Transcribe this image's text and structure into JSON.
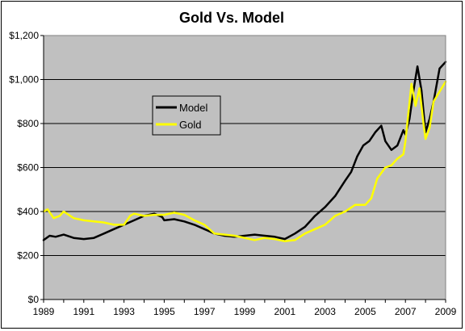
{
  "chart_data": {
    "type": "line",
    "title": "Gold Vs. Model",
    "xlabel": "",
    "ylabel": "",
    "xlim": [
      1989,
      2009
    ],
    "ylim": [
      0,
      1200
    ],
    "x_ticks": [
      1989,
      1991,
      1993,
      1995,
      1997,
      1999,
      2001,
      2003,
      2005,
      2007,
      2009
    ],
    "x_tick_labels": [
      "1989",
      "1991",
      "1993",
      "1995",
      "1997",
      "1999",
      "2001",
      "2003",
      "2005",
      "2007",
      "2009"
    ],
    "y_ticks": [
      0,
      200,
      400,
      600,
      800,
      1000,
      1200
    ],
    "y_tick_labels": [
      "$0",
      "$200",
      "$400",
      "$600",
      "$800",
      "$1,000",
      "$1,200"
    ],
    "grid": "horizontal",
    "plot_background": "#c0c0c0",
    "legend_position": "upper-left inside plot",
    "series": [
      {
        "name": "Model",
        "color": "#000000",
        "x": [
          1989.0,
          1989.3,
          1989.6,
          1990.0,
          1990.5,
          1991.0,
          1991.5,
          1992.0,
          1992.5,
          1993.0,
          1993.5,
          1994.0,
          1994.5,
          1994.9,
          1995.0,
          1995.5,
          1996.0,
          1996.5,
          1997.0,
          1997.5,
          1998.0,
          1998.5,
          1999.0,
          1999.5,
          2000.0,
          2000.5,
          2001.0,
          2001.5,
          2002.0,
          2002.5,
          2003.0,
          2003.5,
          2004.0,
          2004.3,
          2004.6,
          2004.9,
          2005.2,
          2005.5,
          2005.8,
          2006.0,
          2006.3,
          2006.6,
          2006.9,
          2007.0,
          2007.2,
          2007.4,
          2007.6,
          2007.8,
          2008.0,
          2008.2,
          2008.4,
          2008.7,
          2009.0
        ],
        "y": [
          270,
          290,
          285,
          295,
          280,
          275,
          280,
          300,
          320,
          340,
          360,
          380,
          390,
          375,
          360,
          365,
          355,
          340,
          320,
          300,
          290,
          285,
          290,
          295,
          290,
          285,
          275,
          300,
          330,
          380,
          420,
          470,
          540,
          580,
          650,
          700,
          720,
          760,
          790,
          720,
          680,
          700,
          770,
          750,
          820,
          950,
          1060,
          950,
          760,
          820,
          900,
          1050,
          1080
        ]
      },
      {
        "name": "Gold",
        "color": "#ffff00",
        "x": [
          1989.0,
          1989.2,
          1989.5,
          1989.8,
          1990.0,
          1990.5,
          1991.0,
          1991.5,
          1992.0,
          1992.5,
          1993.0,
          1993.3,
          1993.5,
          1994.0,
          1994.5,
          1995.0,
          1995.5,
          1996.0,
          1996.5,
          1997.0,
          1997.5,
          1998.0,
          1998.5,
          1999.0,
          1999.5,
          2000.0,
          2000.5,
          2001.0,
          2001.5,
          2002.0,
          2002.5,
          2003.0,
          2003.5,
          2004.0,
          2004.5,
          2005.0,
          2005.3,
          2005.6,
          2006.0,
          2006.3,
          2006.6,
          2006.9,
          2007.0,
          2007.3,
          2007.5,
          2007.7,
          2007.9,
          2008.0,
          2008.2,
          2008.4,
          2008.6,
          2008.8,
          2009.0
        ],
        "y": [
          400,
          410,
          370,
          380,
          400,
          370,
          360,
          355,
          350,
          340,
          340,
          380,
          390,
          380,
          385,
          385,
          395,
          385,
          360,
          340,
          300,
          295,
          290,
          280,
          270,
          280,
          275,
          265,
          270,
          300,
          320,
          340,
          380,
          400,
          430,
          430,
          460,
          550,
          600,
          610,
          640,
          660,
          720,
          980,
          880,
          960,
          800,
          730,
          780,
          900,
          930,
          960,
          990
        ]
      }
    ]
  }
}
